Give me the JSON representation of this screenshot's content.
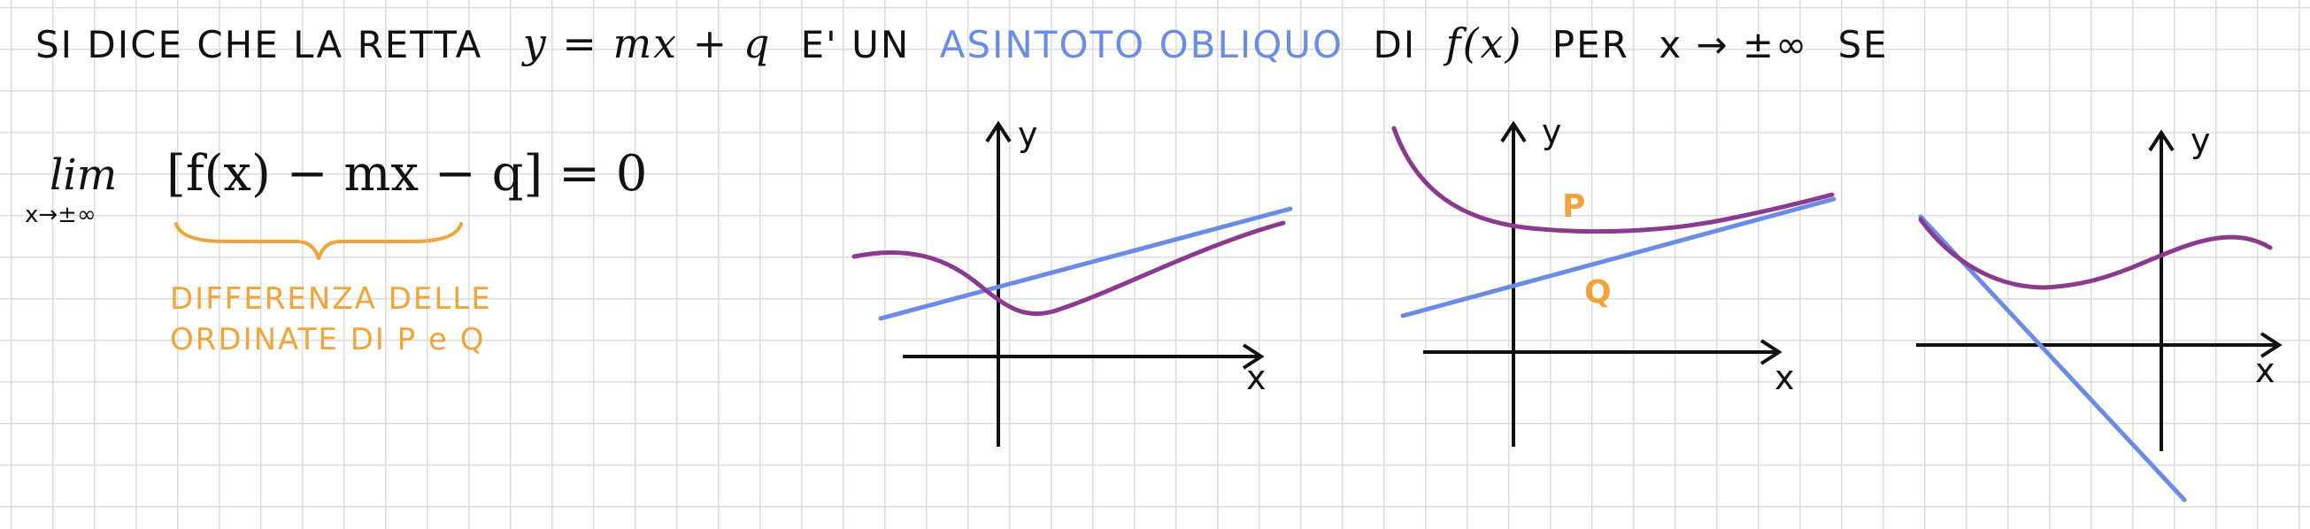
{
  "header": {
    "intro": "SI DICE CHE LA RETTA",
    "line_eq": "y = mx + q",
    "verb": "E' UN",
    "term": "ASINTOTO OBLIQUO",
    "of": "DI",
    "func": "f(x)",
    "per": "PER",
    "x_limit": "x → ±∞",
    "se": "SE"
  },
  "limit": {
    "lim": "lim",
    "sub": "x→±∞",
    "expr": "[f(x) − mx − q] = 0"
  },
  "note": {
    "line1": "DIFFERENZA DELLE",
    "line2": "ORDINATE DI P e Q"
  },
  "graphs": [
    {
      "x_label": "x",
      "y_label": "y"
    },
    {
      "x_label": "x",
      "y_label": "y",
      "point_p": "P",
      "point_q": "Q"
    },
    {
      "x_label": "x",
      "y_label": "y"
    }
  ],
  "colors": {
    "curve": "#8b3a8f",
    "asymptote": "#6a8ce6",
    "note": "#f2a43a",
    "ink": "#111111"
  }
}
